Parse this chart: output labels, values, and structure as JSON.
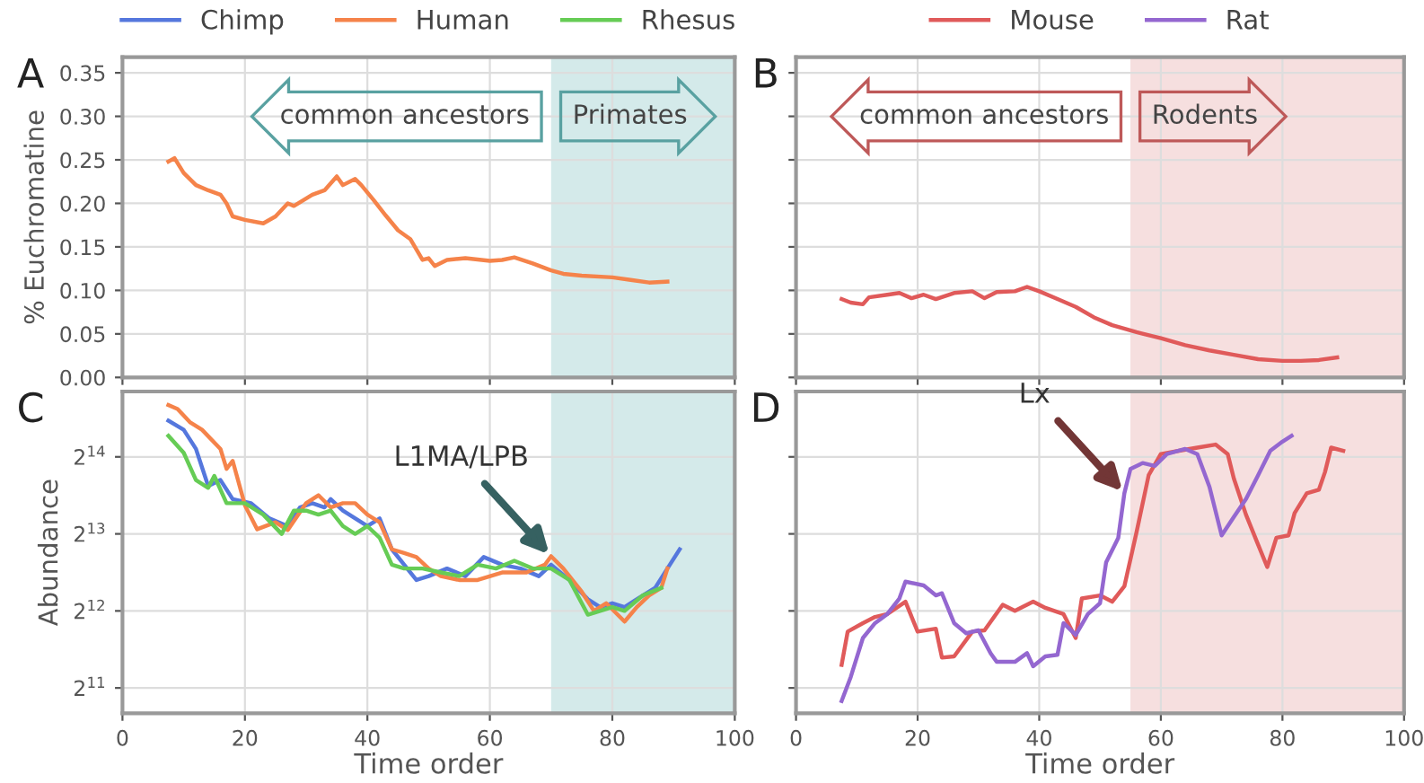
{
  "chart_data": [
    {
      "type": "line",
      "title": "A",
      "ylabel": "% Euchromatine",
      "xlim": [
        0,
        100
      ],
      "xticks": [
        0,
        20,
        40,
        60,
        80,
        100
      ],
      "ylim": [
        0,
        0.368
      ],
      "yticks": [
        {
          "value": 0,
          "label": "0.00"
        },
        {
          "value": 0.05,
          "label": "0.05"
        },
        {
          "value": 0.1,
          "label": "0.10"
        },
        {
          "value": 0.15,
          "label": "0.15"
        },
        {
          "value": 0.2,
          "label": "0.20"
        },
        {
          "value": 0.25,
          "label": "0.25"
        },
        {
          "value": 0.3,
          "label": "0.30"
        },
        {
          "value": 0.35,
          "label": "0.35"
        }
      ],
      "tick_labels": "y",
      "grid": true,
      "series": [
        {
          "color": "#f5834a",
          "x": [
            7.5,
            8.5,
            10,
            12,
            14,
            16,
            17,
            18,
            20,
            23,
            25,
            27,
            28,
            31,
            33,
            35,
            36,
            38,
            39,
            41,
            43,
            45,
            47,
            49,
            50,
            51,
            53,
            56,
            60,
            62,
            64,
            67,
            70,
            72,
            75,
            80,
            83,
            86,
            89
          ],
          "values": [
            0.248,
            0.252,
            0.235,
            0.221,
            0.215,
            0.21,
            0.2,
            0.185,
            0.181,
            0.177,
            0.185,
            0.2,
            0.197,
            0.21,
            0.215,
            0.231,
            0.221,
            0.228,
            0.221,
            0.204,
            0.186,
            0.169,
            0.159,
            0.135,
            0.137,
            0.128,
            0.135,
            0.137,
            0.134,
            0.135,
            0.138,
            0.131,
            0.123,
            0.119,
            0.117,
            0.115,
            0.112,
            0.109,
            0.11
          ]
        }
      ],
      "bands": [
        {
          "axis": "x",
          "from": 70,
          "to": 100,
          "label": "Primates",
          "color": "#d4eaea"
        }
      ],
      "annotations": [
        "common ancestors"
      ]
    },
    {
      "type": "line",
      "title": "B",
      "xlim": [
        0,
        100
      ],
      "xticks": [
        0,
        20,
        40,
        60,
        80,
        100
      ],
      "ylim": [
        0,
        0.368
      ],
      "yticks": [
        {
          "value": 0,
          "label": null
        },
        {
          "value": 0.05,
          "label": null
        },
        {
          "value": 0.1,
          "label": null
        },
        {
          "value": 0.15,
          "label": null
        },
        {
          "value": 0.2,
          "label": null
        },
        {
          "value": 0.25,
          "label": null
        },
        {
          "value": 0.3,
          "label": null
        },
        {
          "value": 0.35,
          "label": null
        }
      ],
      "tick_labels": false,
      "grid": true,
      "series": [
        {
          "color": "#e05a5a",
          "x": [
            7.5,
            9,
            11,
            12,
            15,
            17,
            19,
            21,
            23,
            26,
            29,
            31,
            33,
            36,
            38,
            40,
            43,
            46,
            49,
            52,
            56,
            60,
            64,
            68,
            72,
            76,
            80,
            83,
            86,
            89
          ],
          "values": [
            0.09,
            0.086,
            0.084,
            0.092,
            0.095,
            0.097,
            0.091,
            0.095,
            0.09,
            0.097,
            0.099,
            0.091,
            0.098,
            0.099,
            0.104,
            0.099,
            0.09,
            0.081,
            0.069,
            0.06,
            0.052,
            0.045,
            0.037,
            0.031,
            0.026,
            0.021,
            0.019,
            0.019,
            0.02,
            0.023
          ]
        }
      ],
      "bands": [
        {
          "axis": "x",
          "from": 55,
          "to": 100,
          "label": "Rodents",
          "color": "#f6dfdf"
        }
      ],
      "annotations": [
        "common ancestors"
      ]
    },
    {
      "type": "line",
      "title": "C",
      "xlabel": "Time order",
      "ylabel": "Abundance",
      "log": "y",
      "xlim": [
        0,
        100
      ],
      "xticks": [
        0,
        20,
        40,
        60,
        80,
        100
      ],
      "ylim": [
        1630,
        29500
      ],
      "yticks": [
        {
          "value": 2048,
          "label": "2$^{11}$"
        },
        {
          "value": 4096,
          "label": "2$^{12}$"
        },
        {
          "value": 8192,
          "label": "2$^{13}$"
        },
        {
          "value": 16384,
          "label": "2$^{14}$"
        }
      ],
      "grid": true,
      "legend": "top",
      "series": [
        {
          "name": "Chimp",
          "color": "#5577dd",
          "x": [
            7.5,
            10,
            12,
            14,
            16,
            18,
            21,
            24,
            27,
            29,
            31,
            33,
            34,
            36,
            40,
            42,
            44,
            46,
            48,
            50,
            53,
            56,
            59,
            62,
            65,
            68,
            70,
            73,
            76,
            78,
            80,
            82,
            84,
            87,
            89,
            91
          ],
          "values": [
            22700,
            20900,
            17600,
            12600,
            13300,
            11200,
            10800,
            9410,
            8780,
            10400,
            10800,
            10400,
            11200,
            10100,
            8780,
            9410,
            7130,
            6210,
            5410,
            5600,
            6000,
            5600,
            6650,
            6210,
            6000,
            5600,
            6210,
            5410,
            4550,
            4240,
            4390,
            4240,
            4550,
            5040,
            6000,
            7130
          ]
        },
        {
          "name": "Human",
          "color": "#f5834a",
          "x": [
            7.5,
            9,
            11,
            13,
            16,
            17,
            18,
            20,
            22,
            25,
            27,
            30,
            32,
            34,
            36,
            38,
            40,
            42,
            44,
            46,
            48,
            50,
            52,
            55,
            58,
            62,
            66,
            69,
            70,
            72,
            75,
            77,
            79,
            82,
            84,
            86,
            88,
            89
          ],
          "values": [
            26100,
            25200,
            22400,
            20900,
            17600,
            14700,
            15800,
            10600,
            8540,
            9090,
            8480,
            10800,
            11600,
            10400,
            10800,
            10800,
            9740,
            9090,
            7130,
            6890,
            6650,
            6000,
            5600,
            5410,
            5410,
            5790,
            5790,
            6210,
            6700,
            6000,
            4870,
            4096,
            4390,
            3720,
            4240,
            4710,
            5040,
            6000
          ]
        },
        {
          "name": "Rhesus",
          "color": "#66cc55",
          "x": [
            7.5,
            10,
            12,
            14,
            15,
            17,
            20,
            23,
            26,
            28,
            30,
            32,
            34,
            36,
            38,
            40,
            42,
            44,
            46,
            49,
            52,
            55,
            58,
            61,
            64,
            67,
            70,
            73,
            76,
            78,
            80,
            82,
            85,
            88
          ],
          "values": [
            19800,
            17000,
            13300,
            12400,
            13800,
            10800,
            10800,
            9740,
            8190,
            10100,
            10100,
            9740,
            10100,
            8780,
            8190,
            8780,
            7910,
            6210,
            6000,
            6000,
            5790,
            5600,
            6210,
            6000,
            6430,
            6000,
            6000,
            5410,
            3960,
            4096,
            4240,
            4096,
            4710,
            5040
          ]
        }
      ],
      "bands": [
        {
          "axis": "x",
          "from": 70,
          "to": 100,
          "color": "#d4eaea"
        }
      ],
      "annotations": [
        {
          "text": "L1MA/LPB",
          "x": 70,
          "y": 6700
        }
      ]
    },
    {
      "type": "line",
      "title": "D",
      "xlabel": "Time order",
      "log": "y",
      "xlim": [
        0,
        100
      ],
      "xticks": [
        0,
        20,
        40,
        60,
        80,
        100
      ],
      "ylim": [
        1630,
        29500
      ],
      "yticks": [
        {
          "value": 2048,
          "label": null
        },
        {
          "value": 4096,
          "label": null
        },
        {
          "value": 8192,
          "label": null
        },
        {
          "value": 16384,
          "label": null
        }
      ],
      "tick_labels": "x",
      "grid": true,
      "legend": "top",
      "series": [
        {
          "name": "Mouse",
          "color": "#e05a5a",
          "x": [
            7.5,
            8.5,
            11,
            13,
            15,
            18,
            20,
            23,
            24,
            26,
            29,
            31,
            34,
            36,
            39,
            41,
            44,
            46,
            47,
            50,
            52,
            54,
            56,
            58,
            60,
            63,
            66,
            69,
            71,
            72,
            74,
            76,
            77.5,
            79,
            81,
            82,
            84,
            86,
            87,
            88,
            90
          ],
          "values": [
            2520,
            3400,
            3670,
            3880,
            3980,
            4450,
            3400,
            3490,
            2690,
            2720,
            3400,
            3440,
            4330,
            4096,
            4450,
            4210,
            3980,
            3210,
            4580,
            4710,
            4450,
            5110,
            8310,
            13900,
            16800,
            17300,
            17800,
            18300,
            16800,
            13500,
            9740,
            7430,
            6080,
            7910,
            8080,
            9880,
            11800,
            12200,
            14300,
            17800,
            17300
          ]
        },
        {
          "name": "Rat",
          "color": "#9467d0",
          "x": [
            7.5,
            9,
            11,
            13,
            15,
            17,
            18,
            21,
            23,
            24,
            26,
            28,
            30,
            32,
            33,
            36,
            38,
            39,
            41,
            43,
            44,
            46,
            48,
            50,
            51,
            53,
            54,
            55,
            57,
            59,
            61,
            64,
            66,
            68,
            70,
            72,
            74,
            76,
            78,
            80,
            81.5
          ],
          "values": [
            1820,
            2260,
            3210,
            3670,
            3980,
            4580,
            5330,
            5150,
            4710,
            4800,
            3670,
            3350,
            3440,
            2800,
            2590,
            2590,
            2800,
            2490,
            2720,
            2760,
            3670,
            3300,
            3980,
            4390,
            6340,
            7910,
            11800,
            14700,
            15500,
            15100,
            16800,
            17600,
            16800,
            12500,
            8080,
            9540,
            11200,
            13900,
            17300,
            18800,
            19800
          ]
        }
      ],
      "bands": [
        {
          "axis": "x",
          "from": 55,
          "to": 100,
          "color": "#f6dfdf"
        }
      ],
      "annotations": [
        {
          "text": "Lx",
          "x": 54,
          "y": 11800
        }
      ]
    }
  ]
}
